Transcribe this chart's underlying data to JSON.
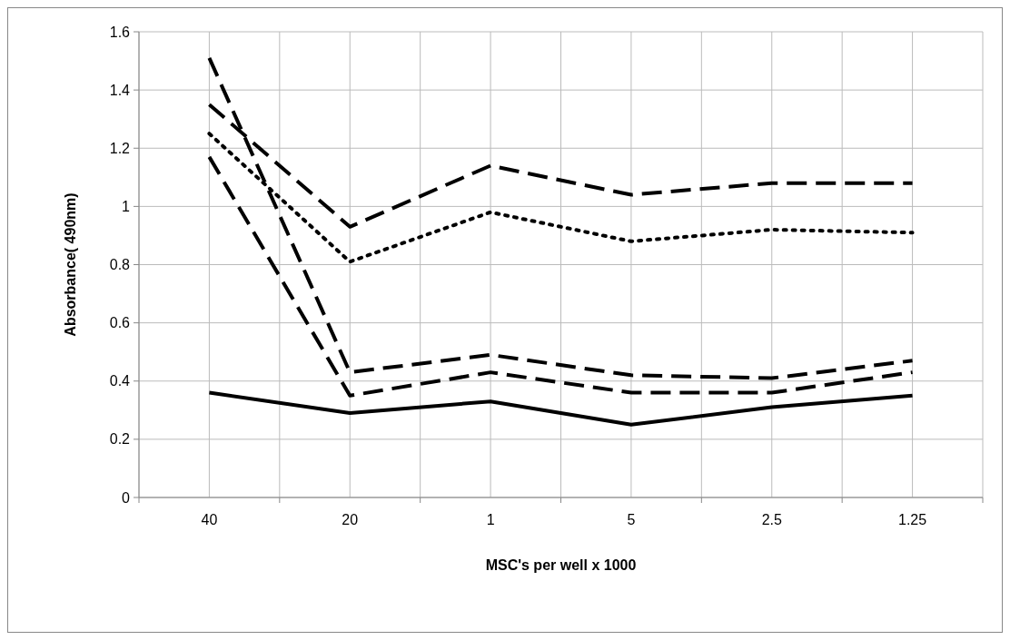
{
  "chart_data": {
    "type": "line",
    "xlabel": "MSC's per well x 1000",
    "ylabel": "Absorbance( 490nm)",
    "categories": [
      "40",
      "20",
      "1",
      "5",
      "2.5",
      "1.25"
    ],
    "series": [
      {
        "color": "#000000",
        "line_style": "dashed",
        "values": [
          1.35,
          0.93,
          1.14,
          1.04,
          1.08,
          1.08
        ]
      },
      {
        "color": "#000000",
        "line_style": "dotted",
        "values": [
          1.25,
          0.81,
          0.98,
          0.88,
          0.92,
          0.91
        ]
      },
      {
        "color": "#000000",
        "line_style": "dashed",
        "values": [
          1.51,
          0.43,
          0.49,
          0.42,
          0.41,
          0.47
        ]
      },
      {
        "color": "#000000",
        "line_style": "dashed",
        "values": [
          1.17,
          0.35,
          0.43,
          0.36,
          0.36,
          0.43
        ]
      },
      {
        "color": "#000000",
        "line_style": "solid",
        "values": [
          0.36,
          0.29,
          0.33,
          0.25,
          0.31,
          0.35
        ]
      }
    ],
    "ylim": [
      0,
      1.6
    ],
    "yticks": [
      0,
      0.2,
      0.4,
      0.6,
      0.8,
      1,
      1.2,
      1.4,
      1.6
    ],
    "grid": true,
    "marker": "none"
  }
}
